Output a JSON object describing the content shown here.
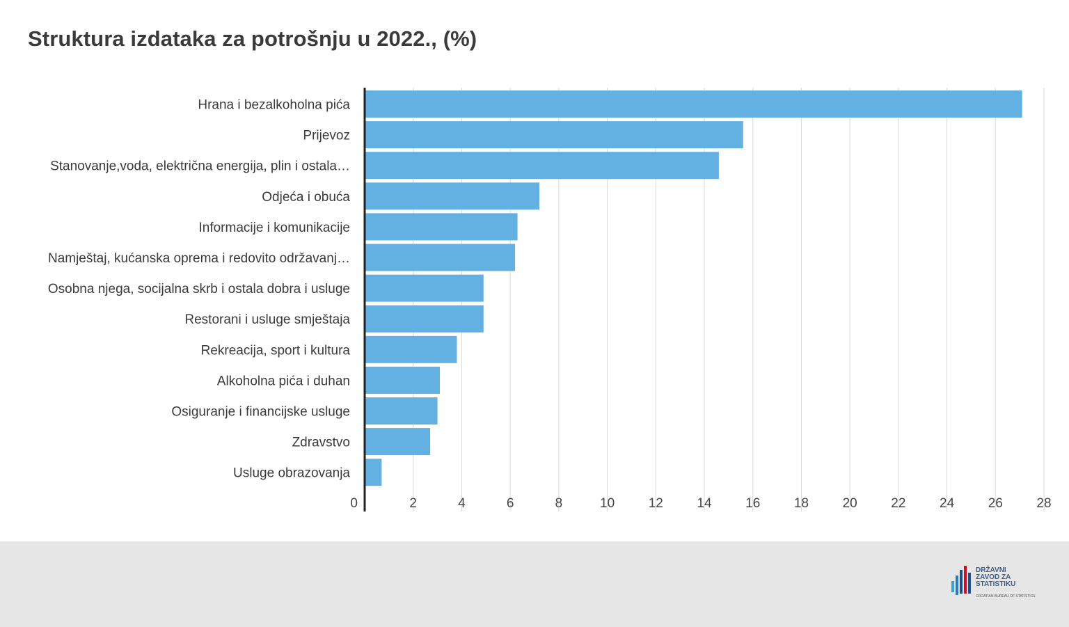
{
  "title": "Struktura izdataka za potrošnju u 2022., (%)",
  "chart_data": {
    "type": "bar",
    "orientation": "horizontal",
    "categories": [
      "Hrana i bezalkoholna pića",
      "Prijevoz",
      "Stanovanje,voda, električna energija, plin i ostala…",
      "Odjeća i obuća",
      "Informacije i komunikacije",
      "Namještaj, kućanska oprema i redovito održavanj…",
      "Osobna njega, socijalna skrb i ostala dobra i usluge",
      "Restorani i usluge smještaja",
      "Rekreacija, sport i kultura",
      "Alkoholna pića i duhan",
      "Osiguranje i financijske usluge",
      "Zdravstvo",
      "Usluge obrazovanja"
    ],
    "values": [
      27.1,
      15.6,
      14.6,
      7.2,
      6.3,
      6.2,
      4.9,
      4.9,
      3.8,
      3.1,
      3.0,
      2.7,
      0.7
    ],
    "xlim": [
      0,
      28
    ],
    "xticks": [
      "0",
      "2",
      "4",
      "6",
      "8",
      "10",
      "12",
      "14",
      "16",
      "18",
      "20",
      "22",
      "24",
      "26",
      "28"
    ],
    "grid": true,
    "bar_color": "#63b0e2",
    "title": "Struktura izdataka za potrošnju u 2022., (%)"
  },
  "footer": {
    "logo_text": [
      "DRŽAVNI",
      "ZAVOD ZA",
      "STATISTIKU"
    ],
    "logo_sub": "CROATIAN BUREAU OF STATISTICS"
  },
  "colors": {
    "footer_bg": "#e6e6e6",
    "title": "#3a3a3a",
    "bar": "#63b0e2",
    "grid": "#d9d9d9",
    "axis": "#222222"
  }
}
